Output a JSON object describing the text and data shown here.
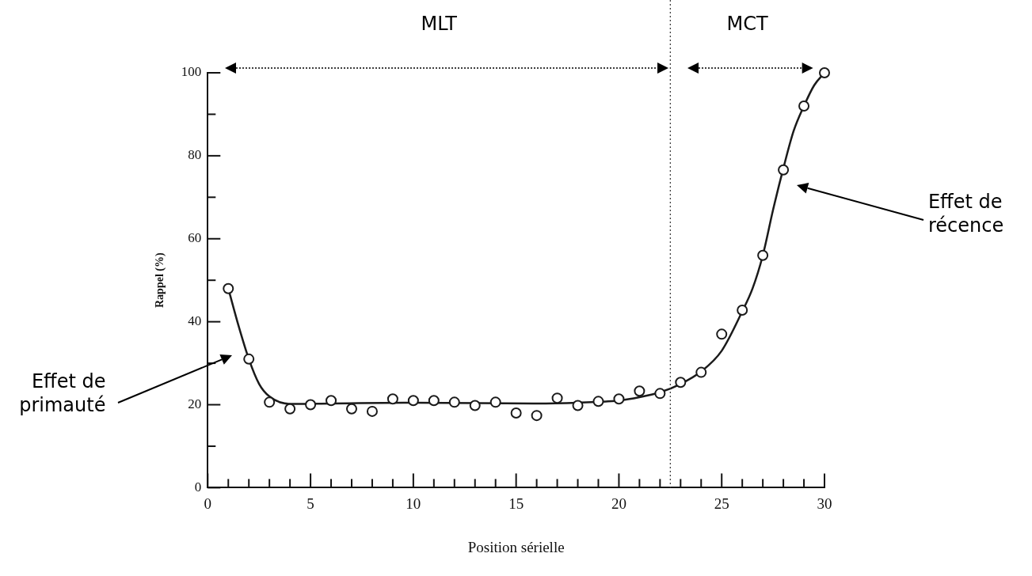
{
  "chart_data": {
    "type": "scatter",
    "xlabel": "Position sérielle",
    "ylabel": "Rappel (%)",
    "xlim": [
      0,
      30
    ],
    "ylim": [
      0,
      100
    ],
    "xticks": [
      0,
      {
        "value": 1,
        "label": null
      },
      {
        "value": 2,
        "label": null
      },
      {
        "value": 3,
        "label": null
      },
      {
        "value": 4,
        "label": null
      },
      5,
      {
        "value": 6,
        "label": null
      },
      {
        "value": 7,
        "label": null
      },
      {
        "value": 8,
        "label": null
      },
      {
        "value": 9,
        "label": null
      },
      10,
      {
        "value": 11,
        "label": null
      },
      {
        "value": 12,
        "label": null
      },
      {
        "value": 13,
        "label": null
      },
      {
        "value": 14,
        "label": null
      },
      15,
      {
        "value": 16,
        "label": null
      },
      {
        "value": 17,
        "label": null
      },
      {
        "value": 18,
        "label": null
      },
      {
        "value": 19,
        "label": null
      },
      20,
      {
        "value": 21,
        "label": null
      },
      {
        "value": 22,
        "label": null
      },
      {
        "value": 23,
        "label": null
      },
      {
        "value": 24,
        "label": null
      },
      25,
      {
        "value": 26,
        "label": null
      },
      {
        "value": 27,
        "label": null
      },
      {
        "value": 28,
        "label": null
      },
      {
        "value": 29,
        "label": null
      },
      30
    ],
    "yticks": [
      0,
      {
        "value": 10,
        "label": null
      },
      20,
      {
        "value": 30,
        "label": null
      },
      40,
      {
        "value": 50,
        "label": null
      },
      60,
      {
        "value": 70,
        "label": null
      },
      80,
      {
        "value": 90,
        "label": null
      },
      100
    ],
    "grid": false,
    "legend": false,
    "series": [
      {
        "type": "scatter",
        "marker": "circle",
        "color": "#1a1a1a",
        "x": [
          1,
          2,
          3,
          4,
          5,
          6,
          7,
          8,
          9,
          10,
          11,
          12,
          13,
          14,
          15,
          16,
          17,
          18,
          19,
          20,
          21,
          22,
          23,
          24,
          25,
          26,
          27,
          28,
          29,
          30
        ],
        "values": [
          48,
          31,
          20.6,
          19,
          20,
          21,
          19,
          18.4,
          21.4,
          21,
          21,
          20.6,
          19.8,
          20.6,
          18,
          17.4,
          21.6,
          19.8,
          20.8,
          21.4,
          23.3,
          22.7,
          25.4,
          27.8,
          37,
          42.8,
          56,
          76.6,
          92,
          100
        ]
      },
      {
        "type": "line",
        "marker": "none",
        "line_style": "solid",
        "color": "#1a1a1a",
        "x": [
          1,
          1.5,
          2,
          2.5,
          3,
          4,
          6,
          10,
          16,
          18,
          20,
          21,
          22,
          23,
          24,
          25,
          26,
          26.5,
          27,
          27.5,
          28,
          28.5,
          29,
          29.5,
          30
        ],
        "values": [
          48,
          39,
          31,
          25,
          22,
          20.2,
          20.3,
          20.5,
          20.3,
          20.5,
          21,
          21.8,
          23,
          25,
          28,
          33,
          42.5,
          48,
          56,
          67,
          77,
          86,
          92,
          97,
          100
        ]
      }
    ],
    "ref_lines": [
      {
        "axis": "x",
        "value": 22.5,
        "color": "#333333",
        "line_style": "dotted"
      }
    ],
    "annotations": [
      "MLT",
      "MCT",
      "Effet de primauté",
      "Effet de récence"
    ]
  }
}
